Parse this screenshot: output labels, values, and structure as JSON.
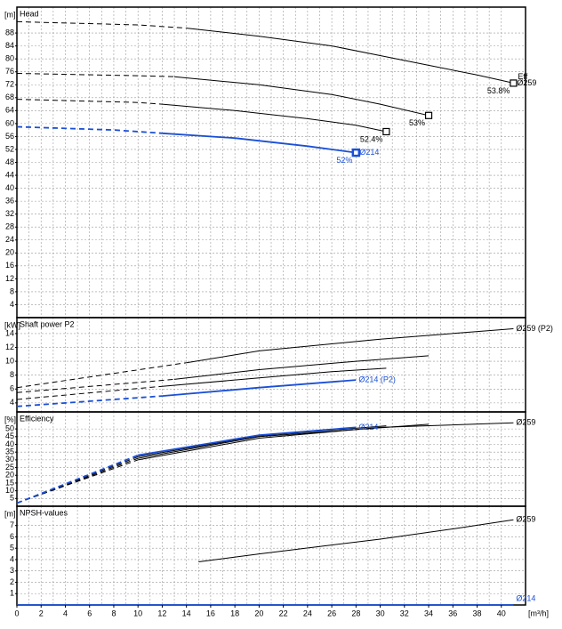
{
  "chart_data": [
    {
      "type": "line",
      "title": "Head",
      "y_label": "[m]",
      "ylim": [
        0,
        96
      ],
      "yticks": [
        4,
        8,
        12,
        16,
        20,
        24,
        28,
        32,
        36,
        40,
        44,
        48,
        52,
        56,
        60,
        64,
        68,
        72,
        76,
        80,
        84,
        88
      ],
      "annotation": "Eff",
      "series": [
        {
          "name": "Ø259",
          "color": "#000000",
          "x": [
            0,
            10,
            14,
            20,
            26,
            30,
            34,
            38,
            41
          ],
          "values": [
            91.5,
            90.5,
            89.5,
            87,
            84,
            81,
            78,
            75,
            72.5
          ],
          "dashed_until": 14,
          "eff_label": "53.8%"
        },
        {
          "color": "#000000",
          "x": [
            0,
            10,
            13,
            20,
            26,
            30,
            34
          ],
          "values": [
            75.5,
            74.8,
            74.5,
            72,
            69,
            66,
            62.5
          ],
          "dashed_until": 13,
          "eff_label": "53%"
        },
        {
          "color": "#000000",
          "x": [
            0,
            10,
            12,
            18,
            24,
            28,
            30.5
          ],
          "values": [
            67.5,
            66.5,
            66,
            64,
            61.5,
            59.5,
            57.5
          ],
          "dashed_until": 12,
          "eff_label": "52.4%"
        },
        {
          "name": "Ø214",
          "color": "#1a4fd6",
          "x": [
            0,
            8,
            12,
            18,
            24,
            28
          ],
          "values": [
            59,
            58,
            57,
            55.5,
            53,
            51
          ],
          "dashed_until": 12,
          "eff_label": "52%"
        }
      ]
    },
    {
      "type": "line",
      "title": "Shaft power P2",
      "y_label": "[kW]",
      "ylim": [
        2.7,
        16.3
      ],
      "yticks": [
        4,
        6,
        8,
        10,
        12,
        14
      ],
      "series": [
        {
          "name": "Ø259 (P2)",
          "color": "#000000",
          "x": [
            0,
            14,
            20,
            30,
            41
          ],
          "values": [
            6.2,
            9.8,
            11.5,
            13.2,
            14.7
          ],
          "dashed_until": 14
        },
        {
          "color": "#000000",
          "x": [
            0,
            13,
            20,
            28,
            34
          ],
          "values": [
            5.5,
            7.4,
            8.8,
            10,
            10.8
          ],
          "dashed_until": 13
        },
        {
          "color": "#000000",
          "x": [
            0,
            12,
            20,
            26,
            30.5
          ],
          "values": [
            4.5,
            6.4,
            7.6,
            8.5,
            9
          ],
          "dashed_until": 12
        },
        {
          "name": "Ø214 (P2)",
          "color": "#1a4fd6",
          "x": [
            0,
            12,
            20,
            28
          ],
          "values": [
            3.5,
            5,
            6.2,
            7.3
          ],
          "dashed_until": 12
        }
      ]
    },
    {
      "type": "line",
      "title": "Efficiency",
      "y_label": "[%]",
      "ylim": [
        0,
        61
      ],
      "yticks": [
        5,
        10,
        15,
        20,
        25,
        30,
        35,
        40,
        45,
        50
      ],
      "series": [
        {
          "name": "Ø259",
          "color": "#000000",
          "x": [
            0,
            10,
            20,
            30,
            41
          ],
          "values": [
            2,
            30,
            44,
            51,
            54
          ],
          "dashed_until": 10
        },
        {
          "color": "#000000",
          "x": [
            0,
            10,
            20,
            34
          ],
          "values": [
            2,
            31,
            45,
            53
          ],
          "dashed_until": 10
        },
        {
          "color": "#000000",
          "x": [
            0,
            10,
            20,
            30.5
          ],
          "values": [
            2,
            32,
            45.5,
            52
          ],
          "dashed_until": 10
        },
        {
          "name": "Ø214",
          "color": "#1a4fd6",
          "x": [
            0,
            10,
            20,
            28
          ],
          "values": [
            2,
            33,
            46,
            51
          ],
          "dashed_until": 10
        }
      ]
    },
    {
      "type": "line",
      "title": "NPSH-values",
      "y_label": "[m]",
      "ylim": [
        0,
        8.7
      ],
      "yticks": [
        1,
        2,
        3,
        4,
        5,
        6,
        7
      ],
      "x_label": "[m³/h]",
      "xlim": [
        0,
        42
      ],
      "xticks": [
        0,
        2,
        4,
        6,
        8,
        10,
        12,
        14,
        16,
        18,
        20,
        22,
        24,
        26,
        28,
        30,
        32,
        34,
        36,
        38,
        40
      ],
      "series": [
        {
          "name": "Ø259",
          "color": "#000000",
          "x": [
            15,
            20,
            30,
            36,
            41
          ],
          "values": [
            3.8,
            4.5,
            5.8,
            6.7,
            7.5
          ]
        },
        {
          "name": "Ø214",
          "color": "#1a4fd6",
          "x": [
            0,
            41
          ],
          "values": [
            0,
            0
          ]
        }
      ]
    }
  ]
}
